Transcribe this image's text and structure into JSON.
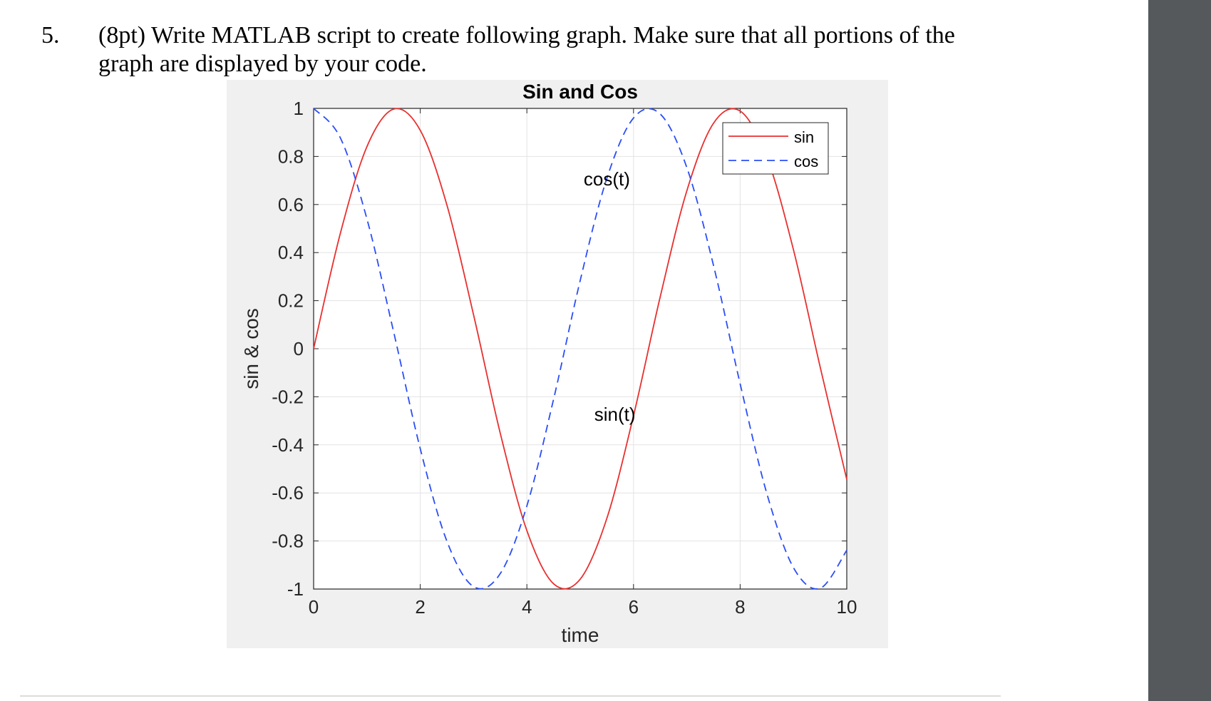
{
  "question": {
    "number": "5.",
    "line1": "(8pt) Write MATLAB script to create following graph. Make sure that all portions of the",
    "line2": "graph are displayed by your code."
  },
  "chart_data": {
    "type": "line",
    "title": "Sin and Cos",
    "xlabel": "time",
    "ylabel": "sin & cos",
    "xlim": [
      0,
      10
    ],
    "ylim": [
      -1,
      1
    ],
    "xticks": [
      0,
      2,
      4,
      6,
      8,
      10
    ],
    "yticks": [
      -1,
      -0.8,
      -0.6,
      -0.4,
      -0.2,
      0,
      0.2,
      0.4,
      0.6,
      0.8,
      1
    ],
    "xtick_labels": [
      "0",
      "2",
      "4",
      "6",
      "8",
      "10"
    ],
    "ytick_labels": [
      "-1",
      "-0.8",
      "-0.6",
      "-0.4",
      "-0.2",
      "0",
      "0.2",
      "0.4",
      "0.6",
      "0.8",
      "1"
    ],
    "grid": true,
    "legend_position": "top-right",
    "series": [
      {
        "name": "sin",
        "color": "#e8302f",
        "style": "solid",
        "x": [
          0,
          0.5,
          1,
          1.5,
          2,
          2.5,
          3,
          3.5,
          4,
          4.5,
          5,
          5.5,
          6,
          6.5,
          7,
          7.5,
          8,
          8.5,
          9,
          9.5,
          10
        ],
        "y": [
          0,
          0.479,
          0.841,
          0.997,
          0.909,
          0.598,
          0.141,
          -0.351,
          -0.757,
          -0.978,
          -0.959,
          -0.706,
          -0.279,
          0.215,
          0.657,
          0.938,
          0.989,
          0.798,
          0.412,
          -0.075,
          -0.544
        ]
      },
      {
        "name": "cos",
        "color": "#2b4ef5",
        "style": "dashed",
        "x": [
          0,
          0.5,
          1,
          1.5,
          2,
          2.5,
          3,
          3.5,
          4,
          4.5,
          5,
          5.5,
          6,
          6.5,
          7,
          7.5,
          8,
          8.5,
          9,
          9.5,
          10
        ],
        "y": [
          1,
          0.878,
          0.54,
          0.071,
          -0.416,
          -0.801,
          -0.99,
          -0.936,
          -0.654,
          -0.211,
          0.284,
          0.709,
          0.96,
          0.977,
          0.754,
          0.347,
          -0.146,
          -0.602,
          -0.911,
          -0.997,
          -0.839
        ]
      }
    ],
    "annotations": [
      {
        "text": "cos(t)",
        "x": 5.5,
        "y": 0.68
      },
      {
        "text": "sin(t)",
        "x": 5.65,
        "y": -0.3
      }
    ]
  }
}
